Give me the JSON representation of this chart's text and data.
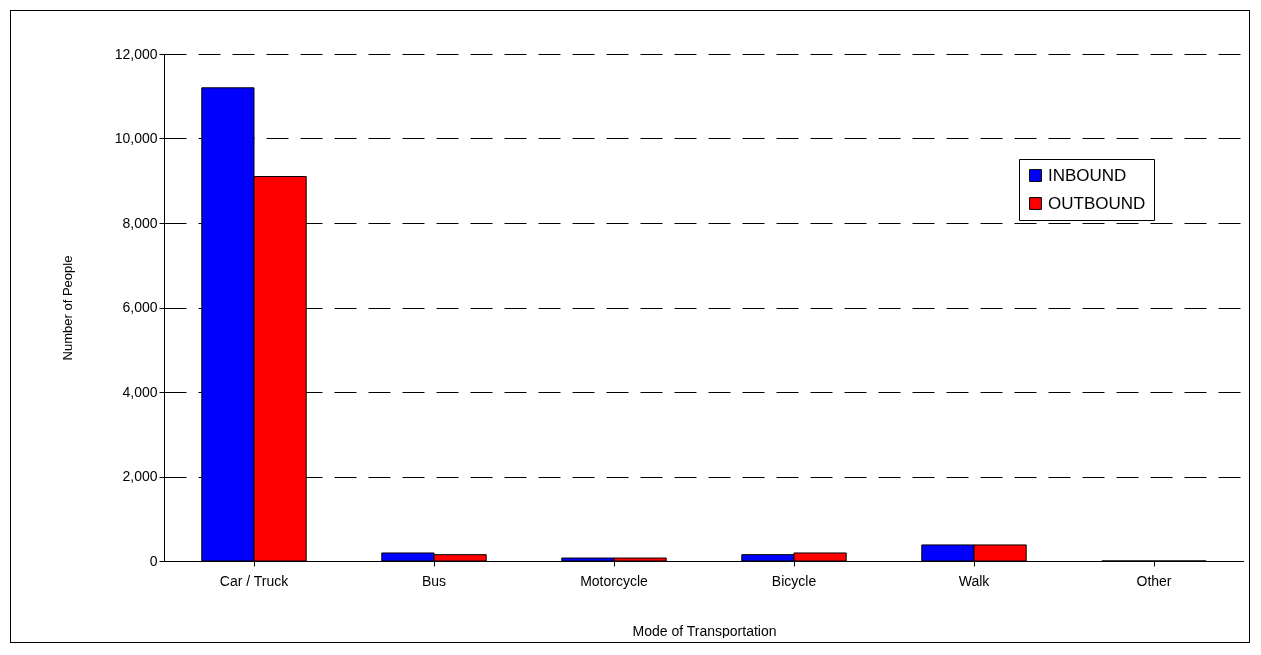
{
  "chart_data": {
    "type": "bar",
    "xlabel": "Mode of Transportation",
    "ylabel": "Number of People",
    "categories": [
      "Car / Truck",
      "Bus",
      "Motorcycle",
      "Bicycle",
      "Walk",
      "Other"
    ],
    "series": [
      {
        "name": "INBOUND",
        "color": "#0000ff",
        "values": [
          11200,
          190,
          70,
          150,
          380,
          0
        ]
      },
      {
        "name": "OUTBOUND",
        "color": "#ff0000",
        "values": [
          9100,
          150,
          70,
          190,
          380,
          0
        ]
      }
    ],
    "ylim": [
      0,
      12000
    ],
    "yticks": [
      0,
      {
        "value": 2000,
        "label": "2,000"
      },
      {
        "value": 4000,
        "label": "4,000"
      },
      {
        "value": 6000,
        "label": "6,000"
      },
      {
        "value": 8000,
        "label": "8,000"
      },
      {
        "value": 10000,
        "label": "10,000"
      },
      {
        "value": 12000,
        "label": "12,000"
      }
    ],
    "grid": "y",
    "legend": "top right"
  }
}
